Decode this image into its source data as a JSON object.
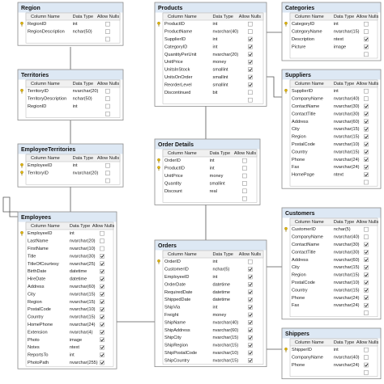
{
  "header": {
    "column_name": "Column Name",
    "data_type": "Data Type",
    "allow_nulls": "Allow Nulls"
  },
  "tables": [
    {
      "name": "Region",
      "columns": [
        {
          "name": "RegionID",
          "type": "int",
          "nulls": false,
          "key": true
        },
        {
          "name": "RegionDescription",
          "type": "nchar(50)",
          "nulls": false,
          "key": false
        }
      ]
    },
    {
      "name": "Products",
      "columns": [
        {
          "name": "ProductID",
          "type": "int",
          "nulls": false,
          "key": true
        },
        {
          "name": "ProductName",
          "type": "nvarchar(40)",
          "nulls": false,
          "key": false
        },
        {
          "name": "SupplierID",
          "type": "int",
          "nulls": true,
          "key": false
        },
        {
          "name": "CategoryID",
          "type": "int",
          "nulls": true,
          "key": false
        },
        {
          "name": "QuantityPerUnit",
          "type": "nvarchar(20)",
          "nulls": true,
          "key": false
        },
        {
          "name": "UnitPrice",
          "type": "money",
          "nulls": true,
          "key": false
        },
        {
          "name": "UnitsInStock",
          "type": "smallint",
          "nulls": true,
          "key": false
        },
        {
          "name": "UnitsOnOrder",
          "type": "smallint",
          "nulls": true,
          "key": false
        },
        {
          "name": "ReorderLevel",
          "type": "smallint",
          "nulls": true,
          "key": false
        },
        {
          "name": "Discontinued",
          "type": "bit",
          "nulls": false,
          "key": false
        }
      ]
    },
    {
      "name": "Categories",
      "columns": [
        {
          "name": "CategoryID",
          "type": "int",
          "nulls": false,
          "key": true
        },
        {
          "name": "CategoryName",
          "type": "nvarchar(15)",
          "nulls": false,
          "key": false
        },
        {
          "name": "Description",
          "type": "ntext",
          "nulls": true,
          "key": false
        },
        {
          "name": "Picture",
          "type": "image",
          "nulls": true,
          "key": false
        }
      ]
    },
    {
      "name": "Territories",
      "columns": [
        {
          "name": "TerritoryID",
          "type": "nvarchar(20)",
          "nulls": false,
          "key": true
        },
        {
          "name": "TerritoryDescription",
          "type": "nchar(50)",
          "nulls": false,
          "key": false
        },
        {
          "name": "RegionID",
          "type": "int",
          "nulls": false,
          "key": false
        }
      ]
    },
    {
      "name": "Suppliers",
      "columns": [
        {
          "name": "SupplierID",
          "type": "int",
          "nulls": false,
          "key": true
        },
        {
          "name": "CompanyName",
          "type": "nvarchar(40)",
          "nulls": false,
          "key": false
        },
        {
          "name": "ContactName",
          "type": "nvarchar(30)",
          "nulls": true,
          "key": false
        },
        {
          "name": "ContactTitle",
          "type": "nvarchar(30)",
          "nulls": true,
          "key": false
        },
        {
          "name": "Address",
          "type": "nvarchar(60)",
          "nulls": true,
          "key": false
        },
        {
          "name": "City",
          "type": "nvarchar(15)",
          "nulls": true,
          "key": false
        },
        {
          "name": "Region",
          "type": "nvarchar(15)",
          "nulls": true,
          "key": false
        },
        {
          "name": "PostalCode",
          "type": "nvarchar(10)",
          "nulls": true,
          "key": false
        },
        {
          "name": "Country",
          "type": "nvarchar(15)",
          "nulls": true,
          "key": false
        },
        {
          "name": "Phone",
          "type": "nvarchar(24)",
          "nulls": true,
          "key": false
        },
        {
          "name": "Fax",
          "type": "nvarchar(24)",
          "nulls": true,
          "key": false
        },
        {
          "name": "HomePage",
          "type": "ntext",
          "nulls": true,
          "key": false
        }
      ]
    },
    {
      "name": "EmployeeTerritories",
      "columns": [
        {
          "name": "EmployeeID",
          "type": "int",
          "nulls": false,
          "key": true
        },
        {
          "name": "TerritoryID",
          "type": "nvarchar(20)",
          "nulls": false,
          "key": true
        }
      ]
    },
    {
      "name": "Order Details",
      "columns": [
        {
          "name": "OrderID",
          "type": "int",
          "nulls": false,
          "key": true
        },
        {
          "name": "ProductID",
          "type": "int",
          "nulls": false,
          "key": true
        },
        {
          "name": "UnitPrice",
          "type": "money",
          "nulls": false,
          "key": false
        },
        {
          "name": "Quantity",
          "type": "smallint",
          "nulls": false,
          "key": false
        },
        {
          "name": "Discount",
          "type": "real",
          "nulls": false,
          "key": false
        }
      ]
    },
    {
      "name": "Employees",
      "columns": [
        {
          "name": "EmployeeID",
          "type": "int",
          "nulls": false,
          "key": true
        },
        {
          "name": "LastName",
          "type": "nvarchar(20)",
          "nulls": false,
          "key": false
        },
        {
          "name": "FirstName",
          "type": "nvarchar(10)",
          "nulls": false,
          "key": false
        },
        {
          "name": "Title",
          "type": "nvarchar(30)",
          "nulls": true,
          "key": false
        },
        {
          "name": "TitleOfCourtesy",
          "type": "nvarchar(25)",
          "nulls": true,
          "key": false
        },
        {
          "name": "BirthDate",
          "type": "datetime",
          "nulls": true,
          "key": false
        },
        {
          "name": "HireDate",
          "type": "datetime",
          "nulls": true,
          "key": false
        },
        {
          "name": "Address",
          "type": "nvarchar(60)",
          "nulls": true,
          "key": false
        },
        {
          "name": "City",
          "type": "nvarchar(15)",
          "nulls": true,
          "key": false
        },
        {
          "name": "Region",
          "type": "nvarchar(15)",
          "nulls": true,
          "key": false
        },
        {
          "name": "PostalCode",
          "type": "nvarchar(10)",
          "nulls": true,
          "key": false
        },
        {
          "name": "Country",
          "type": "nvarchar(15)",
          "nulls": true,
          "key": false
        },
        {
          "name": "HomePhone",
          "type": "nvarchar(24)",
          "nulls": true,
          "key": false
        },
        {
          "name": "Extension",
          "type": "nvarchar(4)",
          "nulls": true,
          "key": false
        },
        {
          "name": "Photo",
          "type": "image",
          "nulls": true,
          "key": false
        },
        {
          "name": "Notes",
          "type": "ntext",
          "nulls": true,
          "key": false
        },
        {
          "name": "ReportsTo",
          "type": "int",
          "nulls": true,
          "key": false
        },
        {
          "name": "PhotoPath",
          "type": "nvarchar(255)",
          "nulls": true,
          "key": false
        }
      ]
    },
    {
      "name": "Customers",
      "columns": [
        {
          "name": "CustomerID",
          "type": "nchar(5)",
          "nulls": false,
          "key": true
        },
        {
          "name": "CompanyName",
          "type": "nvarchar(40)",
          "nulls": false,
          "key": false
        },
        {
          "name": "ContactName",
          "type": "nvarchar(30)",
          "nulls": true,
          "key": false
        },
        {
          "name": "ContactTitle",
          "type": "nvarchar(30)",
          "nulls": true,
          "key": false
        },
        {
          "name": "Address",
          "type": "nvarchar(60)",
          "nulls": true,
          "key": false
        },
        {
          "name": "City",
          "type": "nvarchar(15)",
          "nulls": true,
          "key": false
        },
        {
          "name": "Region",
          "type": "nvarchar(15)",
          "nulls": true,
          "key": false
        },
        {
          "name": "PostalCode",
          "type": "nvarchar(10)",
          "nulls": true,
          "key": false
        },
        {
          "name": "Country",
          "type": "nvarchar(15)",
          "nulls": true,
          "key": false
        },
        {
          "name": "Phone",
          "type": "nvarchar(24)",
          "nulls": true,
          "key": false
        },
        {
          "name": "Fax",
          "type": "nvarchar(24)",
          "nulls": true,
          "key": false
        }
      ]
    },
    {
      "name": "Orders",
      "columns": [
        {
          "name": "OrderID",
          "type": "int",
          "nulls": false,
          "key": true
        },
        {
          "name": "CustomerID",
          "type": "nchar(5)",
          "nulls": true,
          "key": false
        },
        {
          "name": "EmployeeID",
          "type": "int",
          "nulls": true,
          "key": false
        },
        {
          "name": "OrderDate",
          "type": "datetime",
          "nulls": true,
          "key": false
        },
        {
          "name": "RequiredDate",
          "type": "datetime",
          "nulls": true,
          "key": false
        },
        {
          "name": "ShippedDate",
          "type": "datetime",
          "nulls": true,
          "key": false
        },
        {
          "name": "ShipVia",
          "type": "int",
          "nulls": true,
          "key": false
        },
        {
          "name": "Freight",
          "type": "money",
          "nulls": true,
          "key": false
        },
        {
          "name": "ShipName",
          "type": "nvarchar(40)",
          "nulls": true,
          "key": false
        },
        {
          "name": "ShipAddress",
          "type": "nvarchar(60)",
          "nulls": true,
          "key": false
        },
        {
          "name": "ShipCity",
          "type": "nvarchar(15)",
          "nulls": true,
          "key": false
        },
        {
          "name": "ShipRegion",
          "type": "nvarchar(15)",
          "nulls": true,
          "key": false
        },
        {
          "name": "ShipPostalCode",
          "type": "nvarchar(10)",
          "nulls": true,
          "key": false
        },
        {
          "name": "ShipCountry",
          "type": "nvarchar(15)",
          "nulls": true,
          "key": false
        }
      ]
    },
    {
      "name": "Shippers",
      "columns": [
        {
          "name": "ShipperID",
          "type": "int",
          "nulls": false,
          "key": true
        },
        {
          "name": "CompanyName",
          "type": "nvarchar(40)",
          "nulls": false,
          "key": false
        },
        {
          "name": "Phone",
          "type": "nvarchar(24)",
          "nulls": true,
          "key": false
        }
      ]
    }
  ]
}
